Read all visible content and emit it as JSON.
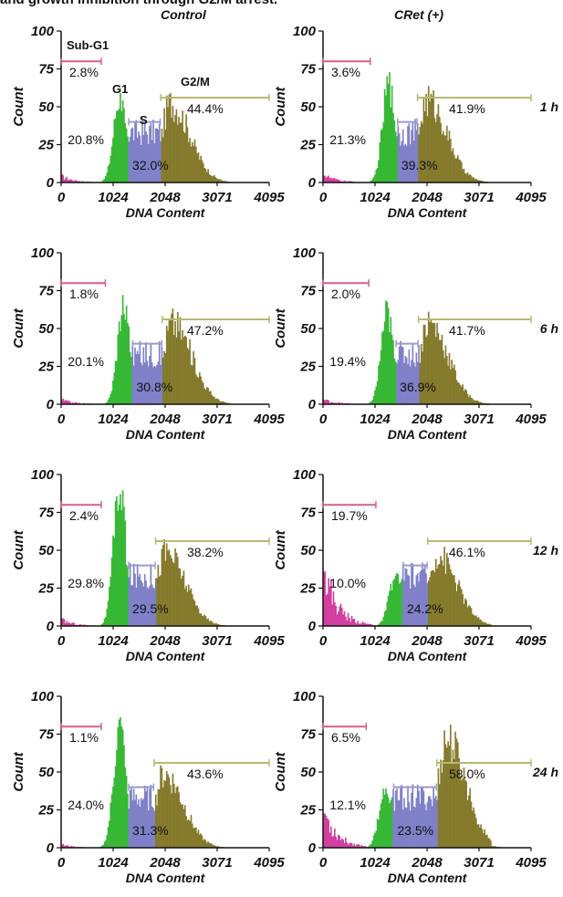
{
  "caption": "and growth inhibition through G2/M arrest.",
  "columns": [
    "Control",
    "CRet (+)"
  ],
  "phase_labels": {
    "subg1": "Sub-G1",
    "g1": "G1",
    "s": "S",
    "g2m": "G2/M"
  },
  "colors": {
    "subg1": "#d23fa0",
    "g1": "#37b835",
    "s": "#7f80c8",
    "g2m": "#857a2c",
    "marker_subg1": "#d86080",
    "marker_s": "#9a9ad0",
    "marker_g2m": "#b8b870"
  },
  "chart_data": [
    {
      "type": "histogram",
      "row_label": "1 h",
      "column": "Control",
      "xlabel": "DNA Content",
      "ylabel": "Count",
      "x_ticks": [
        0,
        1024,
        2048,
        3071,
        4095
      ],
      "y_ticks": [
        0,
        25,
        50,
        75,
        100
      ],
      "xlim": [
        0,
        4095
      ],
      "ylim": [
        0,
        100
      ],
      "percentages": {
        "subg1": "2.8%",
        "g1": "20.8%",
        "s": "32.0%",
        "g2m": "44.4%"
      }
    },
    {
      "type": "histogram",
      "row_label": "1 h",
      "column": "CRet (+)",
      "xlabel": "DNA Content",
      "ylabel": "Count",
      "x_ticks": [
        0,
        1024,
        2048,
        3071,
        4095
      ],
      "y_ticks": [
        0,
        25,
        50,
        75,
        100
      ],
      "xlim": [
        0,
        4095
      ],
      "ylim": [
        0,
        100
      ],
      "percentages": {
        "subg1": "3.6%",
        "g1": "21.3%",
        "s": "39.3%",
        "g2m": "41.9%"
      }
    },
    {
      "type": "histogram",
      "row_label": "6 h",
      "column": "Control",
      "xlabel": "DNA Content",
      "ylabel": "Count",
      "x_ticks": [
        0,
        1024,
        2048,
        3071,
        4095
      ],
      "y_ticks": [
        0,
        25,
        50,
        75,
        100
      ],
      "xlim": [
        0,
        4095
      ],
      "ylim": [
        0,
        100
      ],
      "percentages": {
        "subg1": "1.8%",
        "g1": "20.1%",
        "s": "30.8%",
        "g2m": "47.2%"
      }
    },
    {
      "type": "histogram",
      "row_label": "6 h",
      "column": "CRet (+)",
      "xlabel": "DNA Content",
      "ylabel": "Count",
      "x_ticks": [
        0,
        1024,
        2048,
        3071,
        4095
      ],
      "y_ticks": [
        0,
        25,
        50,
        75,
        100
      ],
      "xlim": [
        0,
        4095
      ],
      "ylim": [
        0,
        100
      ],
      "percentages": {
        "subg1": "2.0%",
        "g1": "19.4%",
        "s": "36.9%",
        "g2m": "41.7%"
      }
    },
    {
      "type": "histogram",
      "row_label": "12 h",
      "column": "Control",
      "xlabel": "DNA Content",
      "ylabel": "Count",
      "x_ticks": [
        0,
        1024,
        2048,
        3071,
        4095
      ],
      "y_ticks": [
        0,
        25,
        50,
        75,
        100
      ],
      "xlim": [
        0,
        4095
      ],
      "ylim": [
        0,
        100
      ],
      "percentages": {
        "subg1": "2.4%",
        "g1": "29.8%",
        "s": "29.5%",
        "g2m": "38.2%"
      }
    },
    {
      "type": "histogram",
      "row_label": "12 h",
      "column": "CRet (+)",
      "xlabel": "DNA Content",
      "ylabel": "Count",
      "x_ticks": [
        0,
        1024,
        2048,
        3071,
        4095
      ],
      "y_ticks": [
        0,
        25,
        50,
        75,
        100
      ],
      "xlim": [
        0,
        4095
      ],
      "ylim": [
        0,
        100
      ],
      "percentages": {
        "subg1": "19.7%",
        "g1": "10.0%",
        "s": "24.2%",
        "g2m": "46.1%"
      }
    },
    {
      "type": "histogram",
      "row_label": "24 h",
      "column": "Control",
      "xlabel": "DNA Content",
      "ylabel": "Count",
      "x_ticks": [
        0,
        1024,
        2048,
        3071,
        4095
      ],
      "y_ticks": [
        0,
        25,
        50,
        75,
        100
      ],
      "xlim": [
        0,
        4095
      ],
      "ylim": [
        0,
        100
      ],
      "percentages": {
        "subg1": "1.1%",
        "g1": "24.0%",
        "s": "31.3%",
        "g2m": "43.6%"
      }
    },
    {
      "type": "histogram",
      "row_label": "24 h",
      "column": "CRet (+)",
      "xlabel": "DNA Content",
      "ylabel": "Count",
      "x_ticks": [
        0,
        1024,
        2048,
        3071,
        4095
      ],
      "y_ticks": [
        0,
        25,
        50,
        75,
        100
      ],
      "xlim": [
        0,
        4095
      ],
      "ylim": [
        0,
        100
      ],
      "percentages": {
        "subg1": "6.5%",
        "g1": "12.1%",
        "s": "23.5%",
        "g2m": "58.0%"
      }
    }
  ]
}
